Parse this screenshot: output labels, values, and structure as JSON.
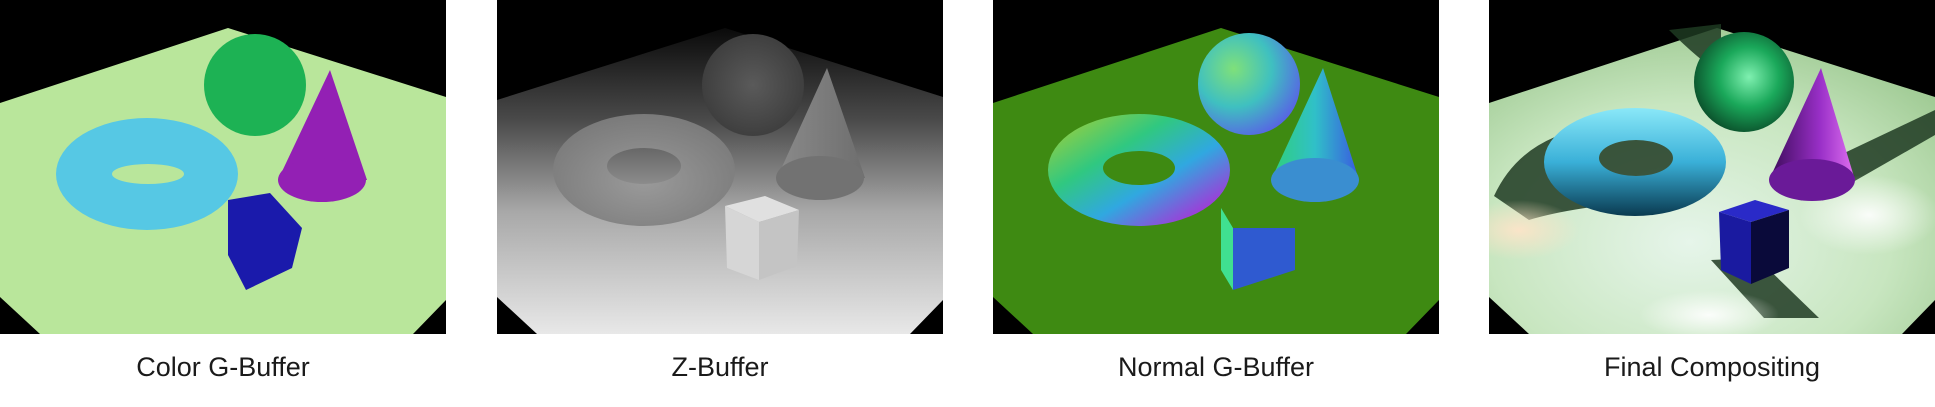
{
  "panels": [
    {
      "caption": "Color G-Buffer"
    },
    {
      "caption": "Z-Buffer"
    },
    {
      "caption": "Normal G-Buffer"
    },
    {
      "caption": "Final Compositing"
    }
  ],
  "colors": {
    "background": "#000000",
    "color_floor": "#b9e69b",
    "color_sphere": "#1db254",
    "color_torus": "#56c8e4",
    "color_cone": "#9320b4",
    "color_cube": "#1a1aab",
    "normal_floor": "#3e8a12",
    "final_floor": "#cfe8c4"
  }
}
